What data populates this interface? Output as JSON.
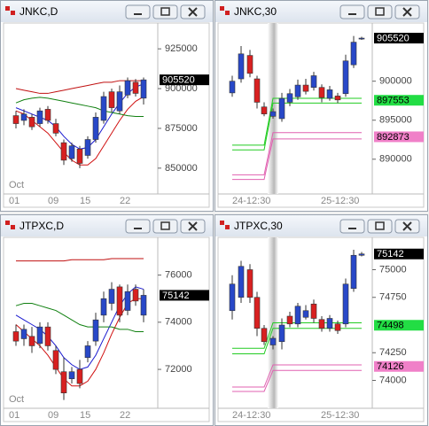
{
  "windows": [
    {
      "title": "JNKC,D",
      "chart": {
        "type": "candlestick",
        "ylim": [
          836000,
          939000
        ],
        "yticks": [
          925000,
          900000,
          875000,
          850000
        ],
        "month_label": "Oct",
        "x_labels": [
          "01",
          "09",
          "15",
          "22"
        ],
        "up_color": "#2848c8",
        "down_color": "#d82020",
        "session_shade": false,
        "candles": [
          {
            "o": 883000,
            "h": 886000,
            "l": 875000,
            "c": 878000
          },
          {
            "o": 880000,
            "h": 887000,
            "l": 877000,
            "c": 884000
          },
          {
            "o": 882000,
            "h": 884000,
            "l": 874000,
            "c": 876000
          },
          {
            "o": 878000,
            "h": 888000,
            "l": 876000,
            "c": 886000
          },
          {
            "o": 887000,
            "h": 889000,
            "l": 878000,
            "c": 880000
          },
          {
            "o": 878000,
            "h": 881000,
            "l": 870000,
            "c": 872000
          },
          {
            "o": 866000,
            "h": 868000,
            "l": 852000,
            "c": 855000
          },
          {
            "o": 856000,
            "h": 866000,
            "l": 854000,
            "c": 864000
          },
          {
            "o": 862000,
            "h": 864000,
            "l": 850000,
            "c": 853000
          },
          {
            "o": 858000,
            "h": 870000,
            "l": 856000,
            "c": 868000
          },
          {
            "o": 868000,
            "h": 885000,
            "l": 866000,
            "c": 882000
          },
          {
            "o": 880000,
            "h": 898000,
            "l": 878000,
            "c": 895000
          },
          {
            "o": 898000,
            "h": 900000,
            "l": 885000,
            "c": 888000
          },
          {
            "o": 886000,
            "h": 902000,
            "l": 884000,
            "c": 898000
          },
          {
            "o": 896000,
            "h": 907000,
            "l": 894000,
            "c": 905000
          },
          {
            "o": 904000,
            "h": 906000,
            "l": 895000,
            "c": 897000
          },
          {
            "o": 894000,
            "h": 907000,
            "l": 890000,
            "c": 905520
          }
        ],
        "lines": [
          {
            "color": "#1a1ad0",
            "values": [
              888000,
              886000,
              884000,
              882000,
              880000,
              876000,
              870000,
              865000,
              862000,
              863000,
              868000,
              876000,
              884000,
              891000,
              897000,
              901000,
              903000
            ]
          },
          {
            "color": "#d01010",
            "values": [
              886000,
              884000,
              880000,
              876000,
              872000,
              866000,
              860000,
              855000,
              852000,
              852000,
              856000,
              864000,
              872000,
              880000,
              887000,
              892000,
              895000
            ]
          },
          {
            "color": "#c01010",
            "values": [
              900000,
              899000,
              898000,
              897000,
              897000,
              898000,
              899000,
              900000,
              901000,
              902000,
              903000,
              904000,
              904000,
              905000,
              905000,
              905000,
              905000
            ]
          },
          {
            "color": "#108010",
            "values": [
              891000,
              893000,
              894000,
              894500,
              894000,
              893000,
              892000,
              891000,
              890000,
              889000,
              888000,
              886000,
              885000,
              884000,
              883000,
              882500,
              882500
            ]
          }
        ],
        "price_tags": [
          {
            "value": 905520,
            "color": "#000000",
            "text_color": "#ffffff"
          }
        ]
      }
    },
    {
      "title": "JNKC,30",
      "chart": {
        "type": "candlestick",
        "ylim": [
          886000,
          907000
        ],
        "yticks": [
          900000,
          895000,
          890000
        ],
        "x_labels": [
          "24-12:30",
          "25-12:30"
        ],
        "up_color": "#2848c8",
        "down_color": "#d82020",
        "session_shade": true,
        "candles": [
          {
            "o": 898500,
            "h": 900700,
            "l": 898000,
            "c": 900000
          },
          {
            "o": 900300,
            "h": 904500,
            "l": 899800,
            "c": 903500
          },
          {
            "o": 903300,
            "h": 904000,
            "l": 900500,
            "c": 901000
          },
          {
            "o": 900300,
            "h": 900700,
            "l": 896500,
            "c": 897300
          },
          {
            "o": 896700,
            "h": 897300,
            "l": 895500,
            "c": 895800
          },
          {
            "o": 895500,
            "h": 896500,
            "l": 895200,
            "c": 896100
          },
          {
            "o": 895200,
            "h": 898500,
            "l": 894800,
            "c": 897800
          },
          {
            "o": 897300,
            "h": 899000,
            "l": 896800,
            "c": 898400
          },
          {
            "o": 898000,
            "h": 900200,
            "l": 897600,
            "c": 899500
          },
          {
            "o": 899500,
            "h": 900300,
            "l": 898300,
            "c": 898700
          },
          {
            "o": 899200,
            "h": 901200,
            "l": 898800,
            "c": 900700
          },
          {
            "o": 899200,
            "h": 899600,
            "l": 897300,
            "c": 897900
          },
          {
            "o": 897800,
            "h": 899400,
            "l": 897500,
            "c": 898900
          },
          {
            "o": 898100,
            "h": 898500,
            "l": 897200,
            "c": 897600
          },
          {
            "o": 898400,
            "h": 903400,
            "l": 898000,
            "c": 902600
          },
          {
            "o": 902100,
            "h": 905800,
            "l": 901700,
            "c": 905000
          },
          {
            "o": 905400,
            "h": 905700,
            "l": 905300,
            "c": 905520
          }
        ],
        "lines": [
          {
            "color": "#22cc22",
            "values": [
              891800,
              891800,
              891800,
              891800,
              891800,
              897800,
              897800,
              897800,
              897800,
              897800,
              897800,
              897800,
              897800,
              897800,
              897800,
              897800,
              897800
            ]
          },
          {
            "color": "#22cc22",
            "values": [
              891200,
              891200,
              891200,
              891200,
              891200,
              897200,
              897200,
              897200,
              897200,
              897200,
              897200,
              897200,
              897200,
              897200,
              897200,
              897200,
              897200
            ]
          },
          {
            "color": "#e060b0",
            "values": [
              888000,
              888000,
              888000,
              888000,
              888000,
              893400,
              893400,
              893400,
              893400,
              893400,
              893400,
              893400,
              893400,
              893400,
              893400,
              893400,
              893400
            ]
          },
          {
            "color": "#e060b0",
            "values": [
              887400,
              887400,
              887400,
              887400,
              887400,
              892600,
              892600,
              892600,
              892600,
              892600,
              892600,
              892600,
              892600,
              892600,
              892600,
              892600,
              892600
            ]
          }
        ],
        "price_tags": [
          {
            "value": 905520,
            "color": "#000000",
            "text_color": "#ffffff"
          },
          {
            "value": 897553,
            "color": "#22dd44",
            "text_color": "#000000"
          },
          {
            "value": 892873,
            "color": "#f080c8",
            "text_color": "#000000"
          }
        ]
      }
    },
    {
      "title": "JTPXC,D",
      "chart": {
        "type": "candlestick",
        "ylim": [
          70500,
          77450
        ],
        "yticks": [
          76000,
          74000,
          72000
        ],
        "month_label": "Oct",
        "x_labels": [
          "01",
          "09",
          "15",
          "22"
        ],
        "up_color": "#2848c8",
        "down_color": "#d82020",
        "session_shade": false,
        "candles": [
          {
            "o": 73600,
            "h": 73900,
            "l": 73000,
            "c": 73200
          },
          {
            "o": 73300,
            "h": 73900,
            "l": 73000,
            "c": 73700
          },
          {
            "o": 73400,
            "h": 73800,
            "l": 72700,
            "c": 73000
          },
          {
            "o": 73100,
            "h": 74000,
            "l": 72900,
            "c": 73800
          },
          {
            "o": 73800,
            "h": 74000,
            "l": 72800,
            "c": 73000
          },
          {
            "o": 72800,
            "h": 73000,
            "l": 71800,
            "c": 72000
          },
          {
            "o": 71900,
            "h": 72500,
            "l": 70700,
            "c": 71000
          },
          {
            "o": 71600,
            "h": 72100,
            "l": 71400,
            "c": 71900
          },
          {
            "o": 72000,
            "h": 72400,
            "l": 71200,
            "c": 71400
          },
          {
            "o": 72500,
            "h": 73200,
            "l": 72300,
            "c": 73000
          },
          {
            "o": 73200,
            "h": 74400,
            "l": 73000,
            "c": 74100
          },
          {
            "o": 74300,
            "h": 75300,
            "l": 74000,
            "c": 75000
          },
          {
            "o": 74800,
            "h": 75700,
            "l": 74500,
            "c": 75400
          },
          {
            "o": 75500,
            "h": 75600,
            "l": 74000,
            "c": 74300
          },
          {
            "o": 74500,
            "h": 75600,
            "l": 74300,
            "c": 75300
          },
          {
            "o": 75400,
            "h": 75600,
            "l": 74700,
            "c": 74900
          },
          {
            "o": 74300,
            "h": 75400,
            "l": 74000,
            "c": 75142
          }
        ],
        "lines": [
          {
            "color": "#1a1ad0",
            "values": [
              74300,
              74100,
              73900,
              73700,
              73400,
              73000,
              72500,
              72200,
              72000,
              72100,
              72600,
              73300,
              74000,
              74700,
              75200,
              75500,
              75400
            ]
          },
          {
            "color": "#d01010",
            "values": [
              73900,
              73600,
              73300,
              73000,
              72600,
              72100,
              71600,
              71300,
              71300,
              71500,
              72000,
              72700,
              73500,
              74200,
              74800,
              75000,
              75000
            ]
          },
          {
            "color": "#c01010",
            "values": [
              76600,
              76600,
              76600,
              76600,
              76600,
              76600,
              76600,
              76650,
              76650,
              76650,
              76650,
              76650,
              76700,
              76700,
              76700,
              76700,
              76700
            ]
          },
          {
            "color": "#108010",
            "values": [
              74700,
              74800,
              74800,
              74700,
              74600,
              74500,
              74300,
              74100,
              73900,
              73800,
              73800,
              73800,
              73800,
              73700,
              73700,
              73600,
              73600
            ]
          }
        ],
        "price_tags": [
          {
            "value": 75142,
            "color": "#000000",
            "text_color": "#ffffff"
          }
        ]
      }
    },
    {
      "title": "JTPXC,30",
      "chart": {
        "type": "candlestick",
        "ylim": [
          73780,
          75260
        ],
        "yticks": [
          75000,
          74750,
          74250,
          74000
        ],
        "x_labels": [
          "24-12:30",
          "25-12:30"
        ],
        "up_color": "#2848c8",
        "down_color": "#d82020",
        "session_shade": true,
        "candles": [
          {
            "o": 74630,
            "h": 74950,
            "l": 74550,
            "c": 74870
          },
          {
            "o": 74750,
            "h": 75080,
            "l": 74700,
            "c": 75030
          },
          {
            "o": 75000,
            "h": 75050,
            "l": 74700,
            "c": 74750
          },
          {
            "o": 74750,
            "h": 74800,
            "l": 74400,
            "c": 74470
          },
          {
            "o": 74470,
            "h": 74500,
            "l": 74320,
            "c": 74350
          },
          {
            "o": 74320,
            "h": 74400,
            "l": 74280,
            "c": 74380
          },
          {
            "o": 74350,
            "h": 74560,
            "l": 74280,
            "c": 74500
          },
          {
            "o": 74580,
            "h": 74620,
            "l": 74480,
            "c": 74510
          },
          {
            "o": 74510,
            "h": 74700,
            "l": 74480,
            "c": 74670
          },
          {
            "o": 74570,
            "h": 74680,
            "l": 74550,
            "c": 74630
          },
          {
            "o": 74690,
            "h": 74730,
            "l": 74520,
            "c": 74560
          },
          {
            "o": 74550,
            "h": 74580,
            "l": 74440,
            "c": 74470
          },
          {
            "o": 74470,
            "h": 74590,
            "l": 74440,
            "c": 74560
          },
          {
            "o": 74510,
            "h": 74540,
            "l": 74420,
            "c": 74450
          },
          {
            "o": 74510,
            "h": 74920,
            "l": 74480,
            "c": 74870
          },
          {
            "o": 74830,
            "h": 75180,
            "l": 74800,
            "c": 75130
          },
          {
            "o": 75130,
            "h": 75160,
            "l": 75120,
            "c": 75142
          }
        ],
        "lines": [
          {
            "color": "#22cc22",
            "values": [
              74290,
              74290,
              74290,
              74290,
              74290,
              74520,
              74520,
              74520,
              74520,
              74520,
              74520,
              74520,
              74520,
              74520,
              74520,
              74520,
              74520
            ]
          },
          {
            "color": "#22cc22",
            "values": [
              74240,
              74240,
              74240,
              74240,
              74240,
              74470,
              74470,
              74470,
              74470,
              74470,
              74470,
              74470,
              74470,
              74470,
              74470,
              74470,
              74470
            ]
          },
          {
            "color": "#e060b0",
            "values": [
              73940,
              73940,
              73940,
              73940,
              73940,
              74140,
              74140,
              74140,
              74140,
              74140,
              74140,
              74140,
              74140,
              74140,
              74140,
              74140,
              74140
            ]
          },
          {
            "color": "#e060b0",
            "values": [
              73900,
              73900,
              73900,
              73900,
              73900,
              74090,
              74090,
              74090,
              74090,
              74090,
              74090,
              74090,
              74090,
              74090,
              74090,
              74090,
              74090
            ]
          }
        ],
        "price_tags": [
          {
            "value": 75142,
            "color": "#000000",
            "text_color": "#ffffff"
          },
          {
            "value": 74498,
            "color": "#22dd44",
            "text_color": "#000000"
          },
          {
            "value": 74126,
            "color": "#f080c8",
            "text_color": "#000000"
          }
        ]
      }
    }
  ]
}
